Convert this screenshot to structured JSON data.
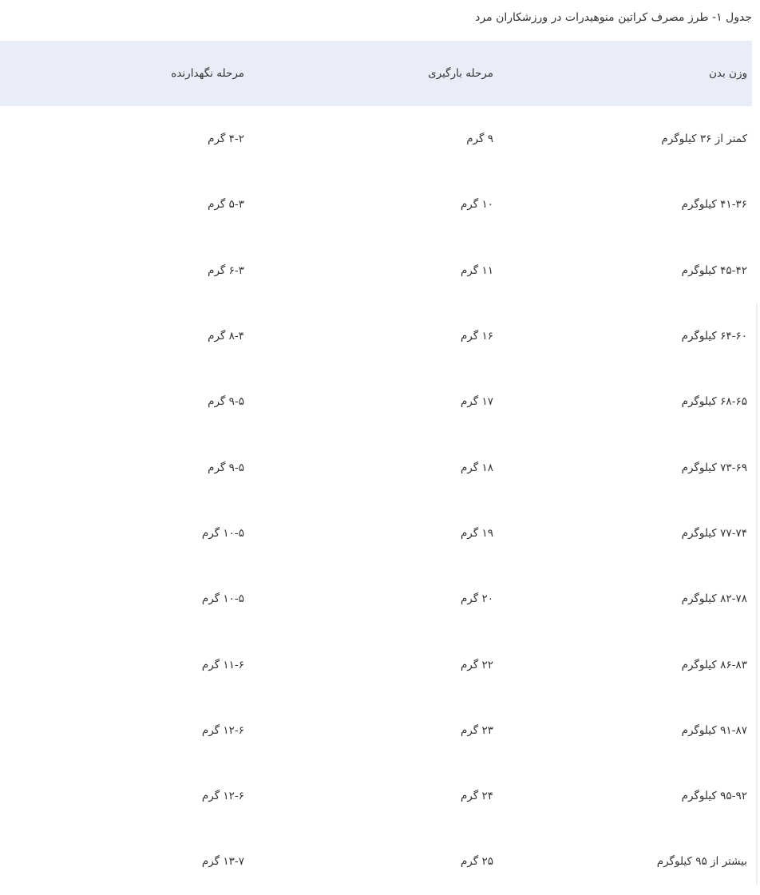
{
  "title": "جدول ۱- طرز مصرف کراتین منوهیدرات در ورزشکاران مرد",
  "table": {
    "headers": [
      "وزن بدن",
      "مرحله بارگیری",
      "مرحله نگهدارنده"
    ],
    "rows": [
      [
        "کمتر از ۳۶ کیلوگرم",
        "۹ گرم",
        "۴-۲ گرم"
      ],
      [
        "۴۱-۳۶ کیلوگرم",
        "۱۰ گرم",
        "۵-۳ گرم"
      ],
      [
        "۴۵-۴۲ کیلوگرم",
        "۱۱ گرم",
        "۶-۳ گرم"
      ],
      [
        "۶۴-۶۰ کیلوگرم",
        "۱۶ گرم",
        "۸-۴ گرم"
      ],
      [
        "۶۸-۶۵ کیلوگرم",
        "۱۷ گرم",
        "۹-۵ گرم"
      ],
      [
        "۷۳-۶۹ کیلوگرم",
        "۱۸ گرم",
        "۹-۵ گرم"
      ],
      [
        "۷۷-۷۴ کیلوگرم",
        "۱۹ گرم",
        "۱۰-۵ گرم"
      ],
      [
        "۸۲-۷۸ کیلوگرم",
        "۲۰ گرم",
        "۱۰-۵ گرم"
      ],
      [
        "۸۶-۸۳ کیلوگرم",
        "۲۲ گرم",
        "۱۱-۶ گرم"
      ],
      [
        "۹۱-۸۷ کیلوگرم",
        "۲۳ گرم",
        "۱۲-۶ گرم"
      ],
      [
        "۹۵-۹۲ کیلوگرم",
        "۲۴ گرم",
        "۱۲-۶ گرم"
      ],
      [
        "بیشتر از ۹۵ کیلوگرم",
        "۲۵ گرم",
        "۱۳-۷ گرم"
      ]
    ]
  },
  "colors": {
    "header_bg": "#e8edf8",
    "text": "#333333"
  }
}
